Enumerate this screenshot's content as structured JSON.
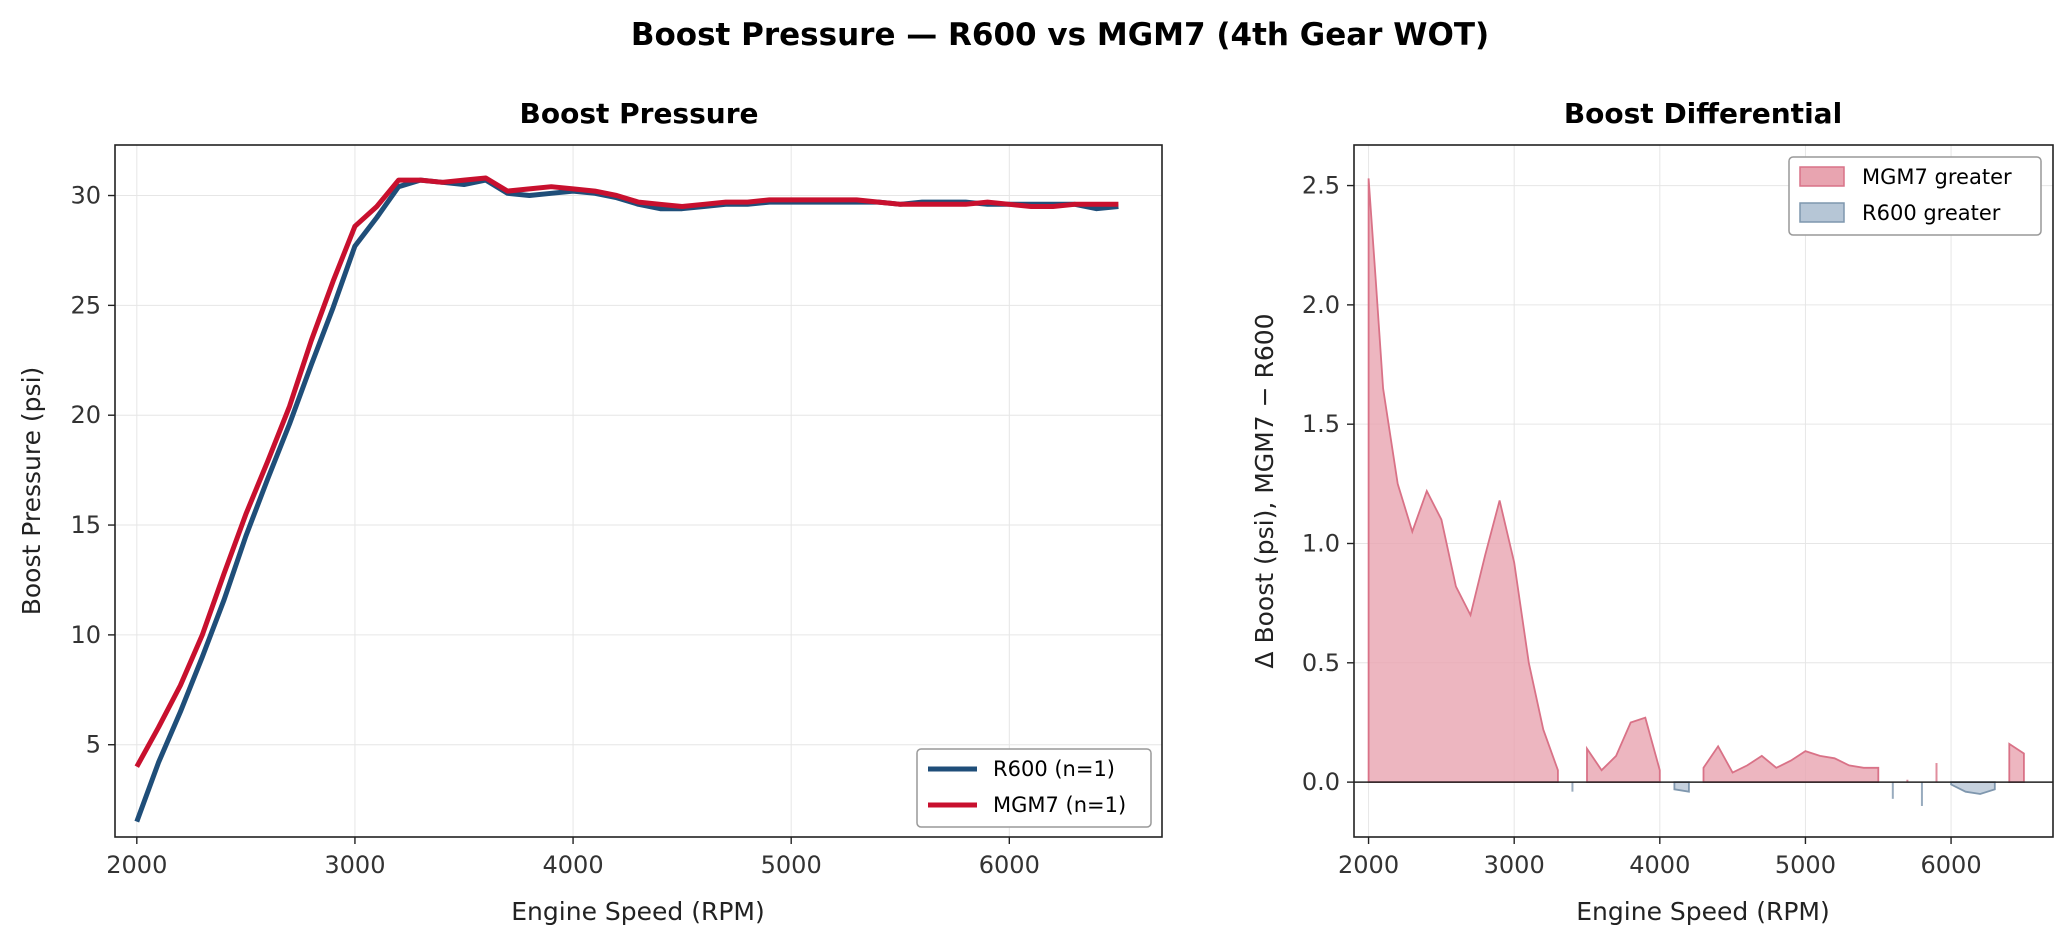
{
  "figure_title": "Boost Pressure — R600 vs MGM7 (4th Gear WOT)",
  "chart_data": [
    {
      "type": "line",
      "title": "Boost Pressure",
      "xlabel": "Engine Speed (RPM)",
      "ylabel": "Boost Pressure (psi)",
      "xlim": [
        1900,
        6700
      ],
      "ylim": [
        0.8,
        32.3
      ],
      "xticks": [
        2000,
        3000,
        4000,
        5000,
        6000
      ],
      "yticks": [
        5,
        10,
        15,
        20,
        25,
        30
      ],
      "grid": true,
      "legend_position": "lower-right",
      "x": [
        2000,
        2100,
        2200,
        2300,
        2400,
        2500,
        2600,
        2700,
        2800,
        2900,
        3000,
        3100,
        3200,
        3300,
        3400,
        3500,
        3600,
        3700,
        3800,
        3900,
        4000,
        4100,
        4200,
        4300,
        4400,
        4500,
        4600,
        4700,
        4800,
        4900,
        5000,
        5100,
        5200,
        5300,
        5400,
        5500,
        5600,
        5700,
        5800,
        5900,
        6000,
        6100,
        6200,
        6300,
        6400,
        6500
      ],
      "series": [
        {
          "name": "R600 (n=1)",
          "color": "#1f4e79",
          "values": [
            1.5,
            4.2,
            6.5,
            9.0,
            11.6,
            14.5,
            17.1,
            19.6,
            22.3,
            24.9,
            27.7,
            29.0,
            30.4,
            30.7,
            30.6,
            30.5,
            30.7,
            30.1,
            30.0,
            30.1,
            30.2,
            30.1,
            29.9,
            29.6,
            29.4,
            29.4,
            29.5,
            29.6,
            29.6,
            29.7,
            29.7,
            29.7,
            29.7,
            29.7,
            29.7,
            29.6,
            29.7,
            29.7,
            29.7,
            29.6,
            29.6,
            29.6,
            29.6,
            29.6,
            29.4,
            29.5
          ]
        },
        {
          "name": "MGM7 (n=1)",
          "color": "#c8102e",
          "values": [
            4.0,
            5.8,
            7.7,
            10.0,
            12.8,
            15.5,
            17.9,
            20.4,
            23.4,
            26.1,
            28.6,
            29.5,
            30.7,
            30.7,
            30.6,
            30.7,
            30.8,
            30.2,
            30.3,
            30.4,
            30.3,
            30.2,
            30.0,
            29.7,
            29.6,
            29.5,
            29.6,
            29.7,
            29.7,
            29.8,
            29.8,
            29.8,
            29.8,
            29.8,
            29.7,
            29.6,
            29.6,
            29.6,
            29.6,
            29.7,
            29.6,
            29.5,
            29.5,
            29.6,
            29.6,
            29.6
          ]
        }
      ]
    },
    {
      "type": "area",
      "title": "Boost Differential",
      "xlabel": "Engine Speed (RPM)",
      "ylabel": "Δ Boost (psi), MGM7 − R600",
      "xlim": [
        1900,
        6700
      ],
      "ylim": [
        -0.23,
        2.67
      ],
      "xticks": [
        2000,
        3000,
        4000,
        5000,
        6000
      ],
      "yticks": [
        0.0,
        0.5,
        1.0,
        1.5,
        2.0,
        2.5
      ],
      "grid": true,
      "legend_position": "upper-right",
      "x": [
        2000,
        2050,
        2100,
        2200,
        2300,
        2400,
        2500,
        2600,
        2700,
        2800,
        2900,
        3000,
        3100,
        3200,
        3300,
        3400,
        3500,
        3600,
        3700,
        3800,
        3900,
        4000,
        4100,
        4200,
        4300,
        4400,
        4500,
        4600,
        4700,
        4800,
        4900,
        5000,
        5100,
        5200,
        5300,
        5400,
        5500,
        5600,
        5700,
        5800,
        5900,
        6000,
        6100,
        6200,
        6300,
        6400,
        6500
      ],
      "values": [
        2.53,
        2.1,
        1.65,
        1.25,
        1.05,
        1.22,
        1.1,
        0.82,
        0.7,
        0.95,
        1.18,
        0.92,
        0.5,
        0.22,
        0.05,
        -0.04,
        0.14,
        0.05,
        0.11,
        0.25,
        0.27,
        0.05,
        -0.03,
        -0.04,
        0.06,
        0.15,
        0.04,
        0.07,
        0.11,
        0.06,
        0.09,
        0.13,
        0.11,
        0.1,
        0.07,
        0.06,
        0.06,
        -0.07,
        0.01,
        -0.1,
        0.08,
        -0.01,
        -0.04,
        -0.05,
        -0.03,
        0.16,
        0.12
      ],
      "series": [
        {
          "name": "MGM7 greater",
          "color": "#e8a4b0",
          "edge": "#d97287"
        },
        {
          "name": "R600 greater",
          "color": "#b6c6d6",
          "edge": "#7f97ae"
        }
      ]
    }
  ]
}
